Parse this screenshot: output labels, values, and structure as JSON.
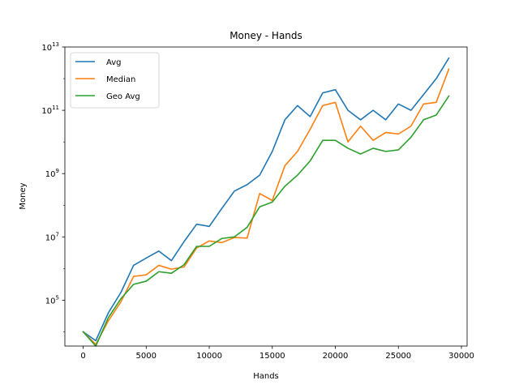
{
  "chart_data": {
    "type": "line",
    "title": "Money - Hands",
    "xlabel": "Hands",
    "ylabel": "Money",
    "yscale": "log",
    "xlim": [
      -1450,
      30450
    ],
    "ylim_log10": [
      3.55,
      13.0
    ],
    "xticks": [
      0,
      5000,
      10000,
      15000,
      20000,
      25000,
      30000
    ],
    "xtick_labels": [
      "0",
      "5000",
      "10000",
      "15000",
      "20000",
      "25000",
      "30000"
    ],
    "yticks_log10": [
      5,
      7,
      9,
      11,
      13
    ],
    "ytick_base": "10",
    "ytick_exponents": [
      "5",
      "7",
      "9",
      "11",
      "13"
    ],
    "grid": false,
    "legend_position": "top-left",
    "x": [
      0,
      1000,
      2000,
      3000,
      4000,
      5000,
      6000,
      7000,
      8000,
      9000,
      10000,
      11000,
      12000,
      13000,
      14000,
      15000,
      16000,
      17000,
      18000,
      19000,
      20000,
      21000,
      22000,
      23000,
      24000,
      25000,
      26000,
      27000,
      28000,
      29000
    ],
    "series": [
      {
        "name": "Avg",
        "color": "#1f77b4",
        "log10_values": [
          4.0,
          3.72,
          4.6,
          5.25,
          6.1,
          6.33,
          6.55,
          6.25,
          6.85,
          7.4,
          7.33,
          7.9,
          8.45,
          8.65,
          8.95,
          9.7,
          10.7,
          11.15,
          10.8,
          11.55,
          11.65,
          11.0,
          10.7,
          11.0,
          10.7,
          11.2,
          11.0,
          11.5,
          12.0,
          12.65
        ]
      },
      {
        "name": "Median",
        "color": "#ff7f0e",
        "log10_values": [
          4.0,
          3.6,
          4.35,
          4.95,
          5.75,
          5.8,
          6.1,
          5.98,
          6.05,
          6.65,
          6.87,
          6.82,
          6.98,
          6.96,
          8.37,
          8.15,
          9.25,
          9.7,
          10.4,
          11.15,
          11.25,
          10.0,
          10.5,
          10.05,
          10.3,
          10.25,
          10.5,
          11.2,
          11.25,
          12.3
        ]
      },
      {
        "name": "Geo Avg",
        "color": "#2ca02c",
        "log10_values": [
          4.0,
          3.55,
          4.45,
          5.05,
          5.5,
          5.6,
          5.9,
          5.85,
          6.12,
          6.7,
          6.7,
          6.95,
          7.0,
          7.3,
          7.95,
          8.1,
          8.6,
          8.95,
          9.4,
          10.05,
          10.05,
          9.8,
          9.62,
          9.8,
          9.7,
          9.75,
          10.15,
          10.7,
          10.85,
          11.45
        ]
      }
    ]
  }
}
